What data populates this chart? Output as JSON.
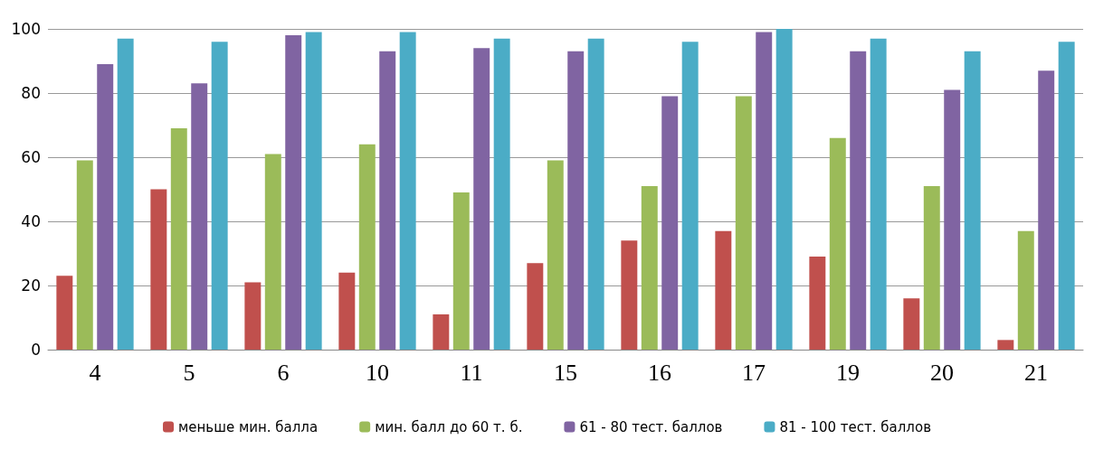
{
  "chart_data": {
    "type": "bar",
    "categories": [
      "4",
      "5",
      "6",
      "10",
      "11",
      "15",
      "16",
      "17",
      "19",
      "20",
      "21"
    ],
    "series": [
      {
        "name": "меньше мин. балла",
        "color": "#c0504d",
        "values": [
          23,
          50,
          21,
          24,
          11,
          27,
          34,
          37,
          29,
          16,
          3
        ]
      },
      {
        "name": "мин. балл до 60 т. б.",
        "color": "#9bbb59",
        "values": [
          59,
          69,
          61,
          64,
          49,
          59,
          51,
          79,
          66,
          51,
          37
        ]
      },
      {
        "name": "61 - 80 тест. баллов",
        "color": "#8064a2",
        "values": [
          89,
          83,
          98,
          93,
          94,
          93,
          79,
          99,
          93,
          81,
          87
        ]
      },
      {
        "name": "81 - 100 тест. баллов",
        "color": "#4bacc6",
        "values": [
          97,
          96,
          99,
          99,
          97,
          97,
          96,
          100,
          97,
          93,
          96
        ]
      }
    ],
    "ylim": [
      0,
      100
    ],
    "yticks": [
      0,
      20,
      40,
      60,
      80,
      100
    ],
    "grid": "y",
    "legend": "bottom"
  }
}
